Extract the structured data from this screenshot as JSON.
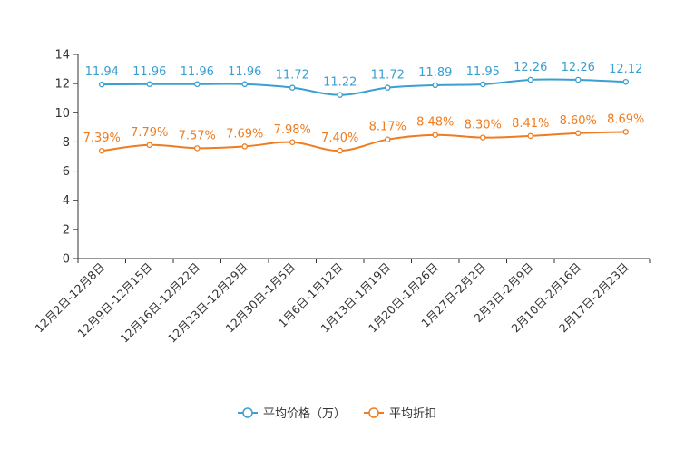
{
  "chart_data": {
    "type": "line",
    "title": "",
    "categories": [
      "12月2日-12月8日",
      "12月9日-12月15日",
      "12月16日-12月22日",
      "12月23日-12月29日",
      "12月30日-1月5日",
      "1月6日-1月12日",
      "1月13日-1月19日",
      "1月20日-1月26日",
      "1月27日-2月2日",
      "2月3日-2月9日",
      "2月10日-2月16日",
      "2月17日-2月23日"
    ],
    "ylim": [
      0,
      14
    ],
    "yticks": [
      "0",
      "2",
      "4",
      "6",
      "8",
      "10",
      "12",
      "14"
    ],
    "series": [
      {
        "name": "平均价格（万）",
        "color": "#3a9fd1",
        "values": [
          11.94,
          11.96,
          11.96,
          11.96,
          11.72,
          11.22,
          11.72,
          11.89,
          11.95,
          12.26,
          12.26,
          12.12
        ],
        "labels": [
          "11.94",
          "11.96",
          "11.96",
          "11.96",
          "11.72",
          "11.22",
          "11.72",
          "11.89",
          "11.95",
          "12.26",
          "12.26",
          "12.12"
        ]
      },
      {
        "name": "平均折扣",
        "color": "#ef7c1f",
        "values": [
          7.39,
          7.79,
          7.57,
          7.69,
          7.98,
          7.4,
          8.17,
          8.48,
          8.3,
          8.41,
          8.6,
          8.69
        ],
        "labels": [
          "7.39%",
          "7.79%",
          "7.57%",
          "7.69%",
          "7.98%",
          "7.40%",
          "8.17%",
          "8.48%",
          "8.30%",
          "8.41%",
          "8.60%",
          "8.69%"
        ]
      }
    ],
    "legend": "bottom-center"
  }
}
